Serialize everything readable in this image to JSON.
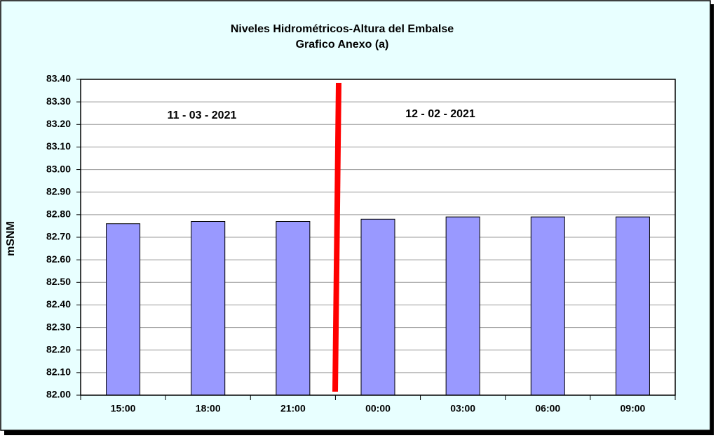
{
  "chart_data": {
    "type": "bar",
    "title": "Niveles Hidrométricos-Altura del Embalse",
    "subtitle": "Grafico Anexo (a)",
    "y_label": "mSNM",
    "annotations": [
      "11 - 03 - 2021",
      "12 - 02 - 2021"
    ],
    "categories": [
      "15:00",
      "18:00",
      "21:00",
      "00:00",
      "03:00",
      "06:00",
      "09:00"
    ],
    "values": [
      82.76,
      82.77,
      82.77,
      82.78,
      82.79,
      82.79,
      82.79
    ],
    "color": "#9999ff",
    "ylim": [
      82.0,
      83.4
    ],
    "yticks": [
      {
        "value": 82.0,
        "label": "82.00"
      },
      {
        "value": 82.1,
        "label": "82.10"
      },
      {
        "value": 82.2,
        "label": "82.20"
      },
      {
        "value": 82.3,
        "label": "82.30"
      },
      {
        "value": 82.4,
        "label": "82.40"
      },
      {
        "value": 82.5,
        "label": "82.50"
      },
      {
        "value": 82.6,
        "label": "82.60"
      },
      {
        "value": 82.7,
        "label": "82.70"
      },
      {
        "value": 82.8,
        "label": "82.80"
      },
      {
        "value": 82.9,
        "label": "82.90"
      },
      {
        "value": 83.0,
        "label": "83.00"
      },
      {
        "value": 83.1,
        "label": "83.10"
      },
      {
        "value": 83.2,
        "label": "83.20"
      },
      {
        "value": 83.3,
        "label": "83.30"
      },
      {
        "value": 83.4,
        "label": "83.40"
      }
    ],
    "grid": true
  }
}
